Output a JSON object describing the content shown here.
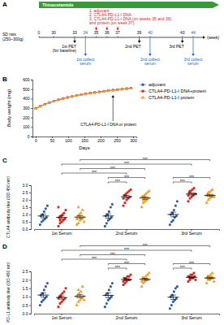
{
  "timeline": {
    "panel": "A",
    "agent": {
      "text": "Thioacetamide",
      "color": "#3a9a3a"
    },
    "subject": [
      "SD rats",
      "(250~300g)"
    ],
    "weeks": [
      0,
      30,
      33,
      34,
      35,
      36,
      37,
      39,
      40,
      43,
      44
    ],
    "unit": "(week)",
    "treatment": {
      "lines": [
        "1. adjuvant",
        "2. CTLA4-PD-L1-I DNA",
        "3. CTLA4-PD-L1-I DNA (on weeks 35 and 36)",
        "and protein (on week 37)"
      ],
      "weeks": [
        35,
        36,
        37
      ],
      "color": "#d62728"
    },
    "events": [
      {
        "week": 33,
        "lines": [
          "1st PET",
          "(for baseline)"
        ],
        "color": "#000000"
      },
      {
        "week": 34,
        "lines": [
          "1st collect",
          "serum"
        ],
        "color": "#1f5fbf"
      },
      {
        "week": 39,
        "lines": [
          "2nd PET"
        ],
        "color": "#000000"
      },
      {
        "week": 40,
        "lines": [
          "2nd collect",
          "serum"
        ],
        "color": "#1f5fbf"
      },
      {
        "week": 43,
        "lines": [
          "3rd PET"
        ],
        "color": "#000000"
      },
      {
        "week": 44,
        "lines": [
          "3rd collect",
          "serum"
        ],
        "color": "#1f5fbf"
      }
    ]
  },
  "chart_data": [
    {
      "panel": "B",
      "type": "line",
      "xlabel": "Days",
      "ylabel": "Body weight (mg)",
      "x": [
        0,
        14,
        28,
        42,
        56,
        70,
        84,
        98,
        112,
        126,
        140,
        154,
        168,
        182,
        196,
        210,
        224,
        238,
        252,
        266,
        280,
        294
      ],
      "xlim": [
        -10,
        310
      ],
      "xticks": [
        0,
        50,
        100,
        150,
        200,
        250,
        300
      ],
      "ylim": [
        0,
        600
      ],
      "yticks": [
        0,
        100,
        200,
        300,
        400,
        500,
        600
      ],
      "legend": "right",
      "annotations": [
        {
          "text": "CTLA4-PD-L1-I DNA or protein",
          "x": 238
        }
      ],
      "series": [
        {
          "name": "adjuvant",
          "color": "#2f5eaa",
          "marker": "circle",
          "values": [
            295,
            318,
            338,
            356,
            372,
            386,
            399,
            411,
            421,
            431,
            440,
            448,
            456,
            463,
            470,
            476,
            482,
            488,
            494,
            499,
            504,
            509
          ]
        },
        {
          "name": "CTLA4-PD-L1-I DNA+protein",
          "color": "#d7261e",
          "marker": "square",
          "values": [
            298,
            320,
            341,
            358,
            374,
            388,
            401,
            412,
            423,
            432,
            441,
            450,
            458,
            465,
            471,
            478,
            484,
            490,
            495,
            500,
            506,
            511
          ]
        },
        {
          "name": "CTLA4-PD-L1-I protein",
          "color": "#f0a22e",
          "marker": "triangle",
          "values": [
            293,
            316,
            336,
            354,
            370,
            384,
            397,
            409,
            420,
            429,
            438,
            446,
            454,
            461,
            468,
            474,
            480,
            486,
            492,
            497,
            502,
            507
          ]
        }
      ]
    },
    {
      "panel": "C",
      "type": "scatter",
      "ylabel": "CTLA4 antibody titer (OD 450 nm)",
      "categories": [
        "1st Serum",
        "2nd Serum",
        "3rd Serum"
      ],
      "ylim": [
        0,
        3
      ],
      "yticks": [
        {
          "value": 0,
          "label": "0.0"
        },
        0.5,
        {
          "value": 1,
          "label": "1.0"
        },
        1.5,
        {
          "value": 2,
          "label": "2.0"
        },
        2.5,
        {
          "value": 3,
          "label": "3.0"
        }
      ],
      "series": [
        {
          "name": "adjuvant",
          "color": "#2f5eaa",
          "marker": "circle",
          "values": [
            [
              0.3,
              0.5,
              0.6,
              0.7,
              0.8,
              0.9,
              1.0,
              1.2,
              1.4,
              1.6
            ],
            [
              0.2,
              0.4,
              0.6,
              0.7,
              0.8,
              0.9,
              1.0,
              1.2,
              1.5,
              1.7
            ],
            [
              0.3,
              0.5,
              0.6,
              0.8,
              0.9,
              1.0,
              1.1,
              1.3,
              1.6,
              1.9
            ]
          ],
          "means": [
            0.9,
            0.9,
            1.0
          ],
          "errors": [
            0.13,
            0.15,
            0.16
          ]
        },
        {
          "name": "CTLA4-PD-L1-I DNA+protein",
          "color": "#d7261e",
          "marker": "square",
          "values": [
            [
              0.2,
              0.4,
              0.5,
              0.6,
              0.7,
              0.8,
              0.9,
              1.0,
              1.1,
              1.3,
              1.5,
              0.6
            ],
            [
              1.6,
              1.8,
              2.0,
              2.1,
              2.2,
              2.3,
              2.4,
              2.5,
              2.6,
              2.7,
              2.1,
              2.3
            ],
            [
              1.9,
              2.1,
              2.2,
              2.3,
              2.4,
              2.5,
              2.6,
              2.7,
              2.8,
              2.4,
              2.3,
              2.6
            ]
          ],
          "means": [
            0.8,
            2.22,
            2.4
          ],
          "errors": [
            0.11,
            0.09,
            0.07
          ]
        },
        {
          "name": "CTLA4-PD-L1-I protein",
          "color": "#f0a22e",
          "marker": "triangle",
          "values": [
            [
              0.3,
              0.4,
              0.6,
              0.7,
              0.8,
              0.9,
              1.0,
              1.1,
              1.3,
              0.5,
              0.7,
              1.5
            ],
            [
              1.5,
              1.8,
              1.9,
              2.0,
              2.1,
              2.2,
              2.3,
              2.4,
              2.5,
              2.6,
              2.2,
              2.0
            ],
            [
              1.8,
              2.0,
              2.1,
              2.2,
              2.3,
              2.4,
              2.5,
              2.6,
              2.7,
              2.2,
              2.3,
              2.5
            ]
          ],
          "means": [
            0.82,
            2.13,
            2.3
          ],
          "errors": [
            0.1,
            0.09,
            0.07
          ]
        }
      ],
      "significance": [
        {
          "category": "2nd Serum",
          "between": [
            "adjuvant",
            "CTLA4-PD-L1-I DNA+protein"
          ],
          "label": "***"
        },
        {
          "category": "3rd Serum",
          "between": [
            "adjuvant",
            "CTLA4-PD-L1-I DNA+protein"
          ],
          "label": "***"
        },
        {
          "category": "2nd Serum",
          "between": [
            "adjuvant",
            "CTLA4-PD-L1-I protein"
          ],
          "label": "***"
        },
        {
          "category": "3rd Serum",
          "between": [
            "adjuvant",
            "CTLA4-PD-L1-I protein"
          ],
          "label": "***"
        },
        {
          "series": "CTLA4-PD-L1-I DNA+protein",
          "between": [
            "1st Serum",
            "2nd Serum"
          ],
          "label": "***"
        },
        {
          "series": "CTLA4-PD-L1-I protein",
          "between": [
            "1st Serum",
            "2nd Serum"
          ],
          "label": "***"
        },
        {
          "series": "CTLA4-PD-L1-I DNA+protein",
          "between": [
            "1st Serum",
            "3rd Serum"
          ],
          "label": "***"
        },
        {
          "series": "CTLA4-PD-L1-I protein",
          "between": [
            "1st Serum",
            "3rd Serum"
          ],
          "label": "***"
        }
      ]
    },
    {
      "panel": "D",
      "type": "scatter",
      "ylabel": "PD-L1 antibody titer (OD 450 nm)",
      "categories": [
        "1st Serum",
        "2nd Serum",
        "3rd Serum"
      ],
      "ylim": [
        0,
        2.5
      ],
      "yticks": [
        {
          "value": 0,
          "label": "0.0"
        },
        0.5,
        {
          "value": 1,
          "label": "1.0"
        },
        1.5,
        {
          "value": 2,
          "label": "2.0"
        },
        2.5
      ],
      "series": [
        {
          "name": "adjuvant",
          "color": "#2f5eaa",
          "marker": "circle",
          "values": [
            [
              0.5,
              0.7,
              0.8,
              0.9,
              1.0,
              1.1,
              1.2,
              1.4,
              1.6,
              1.8
            ],
            [
              0.4,
              0.6,
              0.8,
              0.9,
              1.0,
              1.1,
              1.2,
              1.4,
              1.6,
              1.8
            ],
            [
              0.3,
              0.5,
              0.7,
              0.8,
              0.9,
              1.0,
              1.1,
              1.3,
              1.5,
              1.6
            ]
          ],
          "means": [
            1.1,
            1.08,
            0.97
          ],
          "errors": [
            0.13,
            0.14,
            0.13
          ]
        },
        {
          "name": "CTLA4-PD-L1-I DNA+protein",
          "color": "#d7261e",
          "marker": "square",
          "values": [
            [
              0.4,
              0.6,
              0.7,
              0.8,
              0.9,
              1.0,
              1.1,
              1.2,
              1.3,
              1.5,
              0.9,
              1.0
            ],
            [
              1.7,
              1.8,
              1.9,
              2.0,
              2.0,
              2.1,
              2.1,
              2.2,
              2.2,
              2.3,
              1.9,
              2.0
            ],
            [
              1.9,
              2.0,
              2.1,
              2.1,
              2.2,
              2.2,
              2.3,
              2.3,
              2.4,
              2.0,
              2.2,
              2.1
            ]
          ],
          "means": [
            0.95,
            2.02,
            2.15
          ],
          "errors": [
            0.09,
            0.05,
            0.04
          ]
        },
        {
          "name": "CTLA4-PD-L1-I protein",
          "color": "#f0a22e",
          "marker": "triangle",
          "values": [
            [
              0.5,
              0.7,
              0.8,
              0.9,
              1.0,
              1.1,
              1.2,
              1.3,
              1.6,
              0.8,
              1.0,
              1.4
            ],
            [
              1.6,
              1.8,
              1.9,
              2.0,
              2.0,
              2.1,
              2.1,
              2.2,
              2.3,
              2.4,
              1.9,
              2.1
            ],
            [
              1.8,
              2.0,
              2.0,
              2.1,
              2.1,
              2.2,
              2.2,
              2.3,
              2.4,
              1.9,
              2.1,
              2.2
            ]
          ],
          "means": [
            1.03,
            2.03,
            2.11
          ],
          "errors": [
            0.09,
            0.06,
            0.05
          ]
        }
      ],
      "significance": [
        {
          "category": "2nd Serum",
          "between": [
            "adjuvant",
            "CTLA4-PD-L1-I DNA+protein"
          ],
          "label": "***"
        },
        {
          "category": "3rd Serum",
          "between": [
            "adjuvant",
            "CTLA4-PD-L1-I DNA+protein"
          ],
          "label": "***"
        },
        {
          "category": "2nd Serum",
          "between": [
            "adjuvant",
            "CTLA4-PD-L1-I protein"
          ],
          "label": "***"
        },
        {
          "category": "3rd Serum",
          "between": [
            "adjuvant",
            "CTLA4-PD-L1-I protein"
          ],
          "label": "***"
        },
        {
          "series": "CTLA4-PD-L1-I DNA+protein",
          "between": [
            "1st Serum",
            "2nd Serum"
          ],
          "label": "***"
        },
        {
          "series": "CTLA4-PD-L1-I protein",
          "between": [
            "1st Serum",
            "2nd Serum"
          ],
          "label": "***"
        },
        {
          "series": "CTLA4-PD-L1-I DNA+protein",
          "between": [
            "1st Serum",
            "3rd Serum"
          ],
          "label": "***"
        },
        {
          "series": "CTLA4-PD-L1-I protein",
          "between": [
            "1st Serum",
            "3rd Serum"
          ],
          "label": "***"
        }
      ]
    }
  ]
}
